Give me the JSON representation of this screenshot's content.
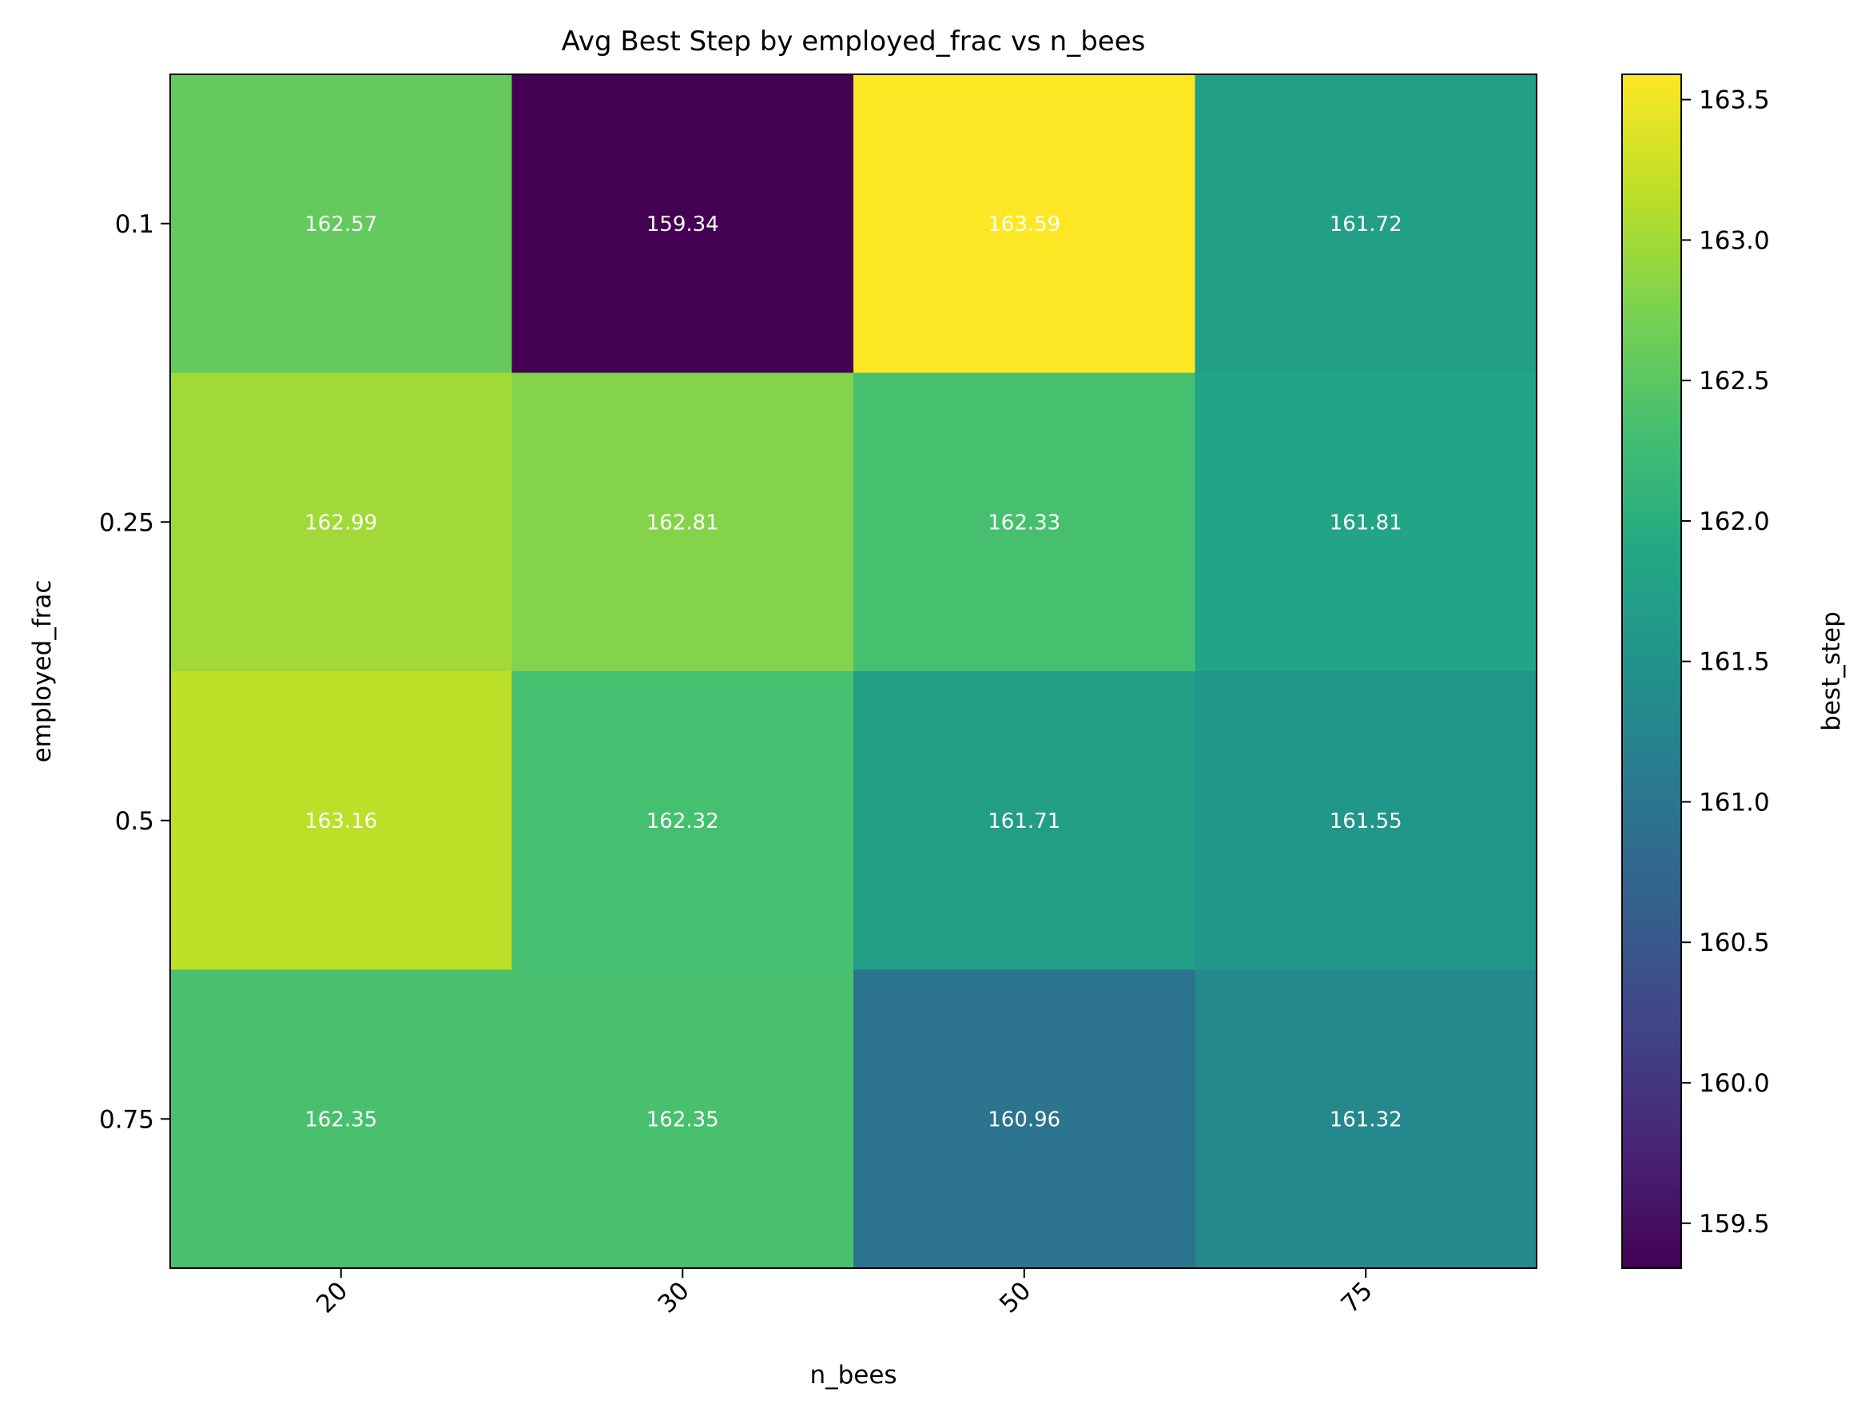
{
  "chart_data": {
    "type": "heatmap",
    "title": "Avg Best Step by employed_frac vs n_bees",
    "xlabel": "n_bees",
    "ylabel": "employed_frac",
    "x_categories": [
      "20",
      "30",
      "50",
      "75"
    ],
    "y_categories": [
      "0.1",
      "0.25",
      "0.5",
      "0.75"
    ],
    "values": [
      [
        162.57,
        159.34,
        163.59,
        161.72
      ],
      [
        162.99,
        162.81,
        162.33,
        161.81
      ],
      [
        163.16,
        162.32,
        161.71,
        161.55
      ],
      [
        162.35,
        162.35,
        160.96,
        161.32
      ]
    ],
    "value_labels": [
      [
        "162.57",
        "159.34",
        "163.59",
        "161.72"
      ],
      [
        "162.99",
        "162.81",
        "162.33",
        "161.81"
      ],
      [
        "163.16",
        "162.32",
        "161.71",
        "161.55"
      ],
      [
        "162.35",
        "162.35",
        "160.96",
        "161.32"
      ]
    ],
    "colormap": "viridis",
    "colorbar": {
      "label": "best_step",
      "vmin": 159.34,
      "vmax": 163.59,
      "ticks": [
        159.5,
        160.0,
        160.5,
        161.0,
        161.5,
        162.0,
        162.5,
        163.0,
        163.5
      ],
      "tick_labels": [
        "159.5",
        "160.0",
        "160.5",
        "161.0",
        "161.5",
        "162.0",
        "162.5",
        "163.0",
        "163.5"
      ]
    },
    "annotation_color": "#ffffff",
    "grid": false
  }
}
